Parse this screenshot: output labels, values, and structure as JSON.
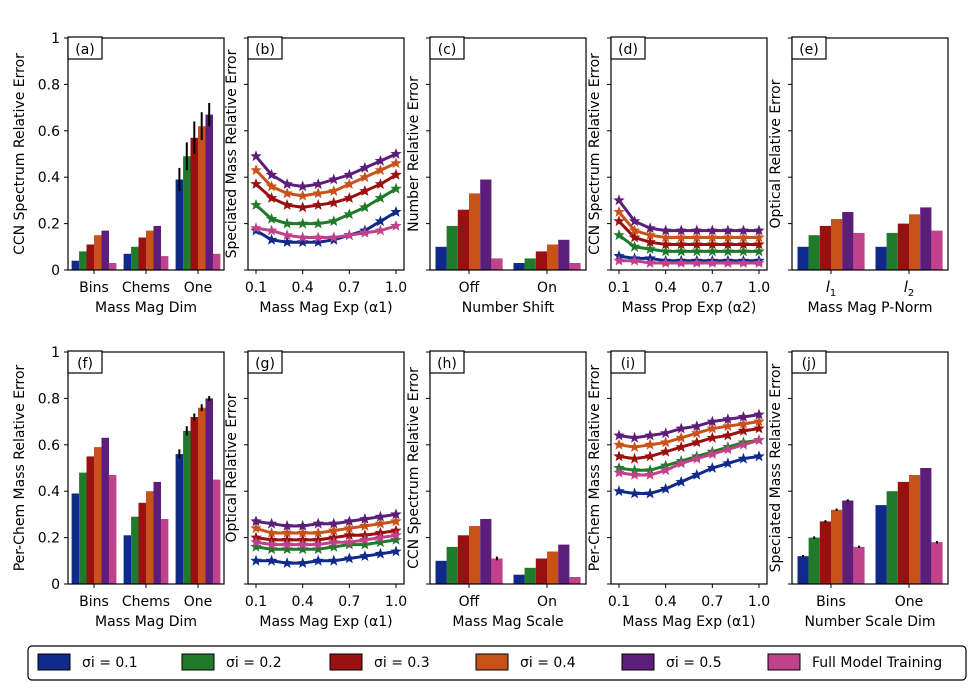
{
  "figure": {
    "legend": {
      "entries": [
        "σi = 0.1",
        "σi = 0.2",
        "σi = 0.3",
        "σi = 0.4",
        "σi = 0.5",
        "Full Model Training"
      ],
      "colors": [
        "#102a8c",
        "#1f7a2a",
        "#9a0f0f",
        "#c8521a",
        "#5b1e7a",
        "#c0428a"
      ]
    },
    "y_ticks": [
      "0",
      "0.2",
      "0.4",
      "0.6",
      "0.8",
      "1"
    ],
    "x_ticks_continuous": [
      "0.1",
      "0.4",
      "0.7",
      "1.0"
    ]
  },
  "chart_data": [
    {
      "id": "a",
      "panel_label": "(a)",
      "type": "bar",
      "ylabel": "CCN Spectrum Relative Error",
      "xlabel": "Mass Mag Dim",
      "categories": [
        "Bins",
        "Chems",
        "One"
      ],
      "ylim": [
        0,
        1
      ],
      "show_yticks": true,
      "series": [
        {
          "name": "σi = 0.1",
          "values": [
            0.04,
            0.07,
            0.39
          ],
          "errors": [
            0.0,
            0.0,
            0.05
          ]
        },
        {
          "name": "σi = 0.2",
          "values": [
            0.08,
            0.1,
            0.49
          ],
          "errors": [
            0.0,
            0.0,
            0.06
          ]
        },
        {
          "name": "σi = 0.3",
          "values": [
            0.11,
            0.14,
            0.57
          ],
          "errors": [
            0.0,
            0.0,
            0.07
          ]
        },
        {
          "name": "σi = 0.4",
          "values": [
            0.15,
            0.17,
            0.62
          ],
          "errors": [
            0.0,
            0.0,
            0.06
          ]
        },
        {
          "name": "σi = 0.5",
          "values": [
            0.17,
            0.19,
            0.67
          ],
          "errors": [
            0.0,
            0.0,
            0.05
          ]
        },
        {
          "name": "Full Model Training",
          "values": [
            0.03,
            0.06,
            0.07
          ],
          "errors": [
            0.0,
            0.0,
            0.0
          ]
        }
      ]
    },
    {
      "id": "b",
      "panel_label": "(b)",
      "type": "line",
      "ylabel": "Speciated Mass Relative Error",
      "xlabel": "Mass Mag Exp (α1)",
      "x": [
        0.1,
        0.2,
        0.3,
        0.4,
        0.5,
        0.6,
        0.7,
        0.8,
        0.9,
        1.0
      ],
      "ylim": [
        0,
        1
      ],
      "show_yticks": false,
      "series": [
        {
          "name": "σi = 0.1",
          "values": [
            0.17,
            0.13,
            0.12,
            0.12,
            0.12,
            0.13,
            0.15,
            0.17,
            0.21,
            0.25
          ]
        },
        {
          "name": "σi = 0.2",
          "values": [
            0.28,
            0.22,
            0.2,
            0.2,
            0.2,
            0.21,
            0.24,
            0.27,
            0.31,
            0.35
          ]
        },
        {
          "name": "σi = 0.3",
          "values": [
            0.37,
            0.31,
            0.28,
            0.27,
            0.28,
            0.29,
            0.31,
            0.34,
            0.37,
            0.41
          ]
        },
        {
          "name": "σi = 0.4",
          "values": [
            0.43,
            0.36,
            0.33,
            0.32,
            0.33,
            0.34,
            0.37,
            0.4,
            0.43,
            0.46
          ]
        },
        {
          "name": "σi = 0.5",
          "values": [
            0.49,
            0.41,
            0.37,
            0.36,
            0.37,
            0.39,
            0.41,
            0.44,
            0.47,
            0.5
          ]
        },
        {
          "name": "Full Model Training",
          "values": [
            0.18,
            0.17,
            0.15,
            0.14,
            0.14,
            0.14,
            0.15,
            0.16,
            0.17,
            0.19
          ]
        }
      ]
    },
    {
      "id": "c",
      "panel_label": "(c)",
      "type": "bar",
      "ylabel": "Number Relative Error",
      "xlabel": "Number Shift",
      "categories": [
        "Off",
        "On"
      ],
      "ylim": [
        0,
        1
      ],
      "show_yticks": false,
      "series": [
        {
          "name": "σi = 0.1",
          "values": [
            0.1,
            0.03
          ]
        },
        {
          "name": "σi = 0.2",
          "values": [
            0.19,
            0.05
          ]
        },
        {
          "name": "σi = 0.3",
          "values": [
            0.26,
            0.08
          ]
        },
        {
          "name": "σi = 0.4",
          "values": [
            0.33,
            0.11
          ]
        },
        {
          "name": "σi = 0.5",
          "values": [
            0.39,
            0.13
          ]
        },
        {
          "name": "Full Model Training",
          "values": [
            0.05,
            0.03
          ]
        }
      ]
    },
    {
      "id": "d",
      "panel_label": "(d)",
      "type": "line",
      "ylabel": "CCN Spectrum Relative Error",
      "xlabel": "Mass Prop Exp (α2)",
      "x": [
        0.1,
        0.2,
        0.3,
        0.4,
        0.5,
        0.6,
        0.7,
        0.8,
        0.9,
        1.0
      ],
      "ylim": [
        0,
        1
      ],
      "show_yticks": false,
      "series": [
        {
          "name": "σi = 0.1",
          "values": [
            0.06,
            0.05,
            0.05,
            0.04,
            0.04,
            0.04,
            0.04,
            0.04,
            0.04,
            0.04
          ]
        },
        {
          "name": "σi = 0.2",
          "values": [
            0.15,
            0.1,
            0.09,
            0.08,
            0.08,
            0.08,
            0.08,
            0.08,
            0.08,
            0.08
          ]
        },
        {
          "name": "σi = 0.3",
          "values": [
            0.21,
            0.14,
            0.12,
            0.11,
            0.11,
            0.11,
            0.11,
            0.11,
            0.11,
            0.11
          ]
        },
        {
          "name": "σi = 0.4",
          "values": [
            0.25,
            0.17,
            0.15,
            0.14,
            0.14,
            0.14,
            0.14,
            0.14,
            0.14,
            0.14
          ]
        },
        {
          "name": "σi = 0.5",
          "values": [
            0.3,
            0.21,
            0.18,
            0.17,
            0.17,
            0.17,
            0.17,
            0.17,
            0.17,
            0.17
          ]
        },
        {
          "name": "Full Model Training",
          "values": [
            0.04,
            0.04,
            0.03,
            0.03,
            0.03,
            0.03,
            0.03,
            0.03,
            0.03,
            0.03
          ]
        }
      ]
    },
    {
      "id": "e",
      "panel_label": "(e)",
      "type": "bar",
      "ylabel": "Optical Relative Error",
      "xlabel": "Mass Mag P-Norm",
      "categories": [
        "l1",
        "l2"
      ],
      "ylim": [
        0,
        1
      ],
      "show_yticks": false,
      "series": [
        {
          "name": "σi = 0.1",
          "values": [
            0.1,
            0.1
          ]
        },
        {
          "name": "σi = 0.2",
          "values": [
            0.15,
            0.16
          ]
        },
        {
          "name": "σi = 0.3",
          "values": [
            0.19,
            0.2
          ]
        },
        {
          "name": "σi = 0.4",
          "values": [
            0.22,
            0.24
          ]
        },
        {
          "name": "σi = 0.5",
          "values": [
            0.25,
            0.27
          ]
        },
        {
          "name": "Full Model Training",
          "values": [
            0.16,
            0.17
          ]
        }
      ]
    },
    {
      "id": "f",
      "panel_label": "(f)",
      "type": "bar",
      "ylabel": "Per-Chem Mass Relative Error",
      "xlabel": "Mass Mag Dim",
      "categories": [
        "Bins",
        "Chems",
        "One"
      ],
      "ylim": [
        0,
        1
      ],
      "show_yticks": true,
      "series": [
        {
          "name": "σi = 0.1",
          "values": [
            0.39,
            0.21,
            0.56
          ],
          "errors": [
            0.0,
            0.0,
            0.02
          ]
        },
        {
          "name": "σi = 0.2",
          "values": [
            0.48,
            0.29,
            0.66
          ],
          "errors": [
            0.0,
            0.0,
            0.02
          ]
        },
        {
          "name": "σi = 0.3",
          "values": [
            0.55,
            0.35,
            0.72
          ],
          "errors": [
            0.0,
            0.0,
            0.015
          ]
        },
        {
          "name": "σi = 0.4",
          "values": [
            0.59,
            0.4,
            0.76
          ],
          "errors": [
            0.0,
            0.0,
            0.015
          ]
        },
        {
          "name": "σi = 0.5",
          "values": [
            0.63,
            0.44,
            0.8
          ],
          "errors": [
            0.0,
            0.0,
            0.01
          ]
        },
        {
          "name": "Full Model Training",
          "values": [
            0.47,
            0.28,
            0.45
          ],
          "errors": [
            0.0,
            0.0,
            0.0
          ]
        }
      ]
    },
    {
      "id": "g",
      "panel_label": "(g)",
      "type": "line",
      "ylabel": "Optical Relative Error",
      "xlabel": "Mass Mag Exp (α1)",
      "x": [
        0.1,
        0.2,
        0.3,
        0.4,
        0.5,
        0.6,
        0.7,
        0.8,
        0.9,
        1.0
      ],
      "ylim": [
        0,
        1
      ],
      "show_yticks": false,
      "series": [
        {
          "name": "σi = 0.1",
          "values": [
            0.1,
            0.1,
            0.09,
            0.09,
            0.1,
            0.1,
            0.11,
            0.12,
            0.13,
            0.14
          ]
        },
        {
          "name": "σi = 0.2",
          "values": [
            0.16,
            0.15,
            0.15,
            0.15,
            0.15,
            0.16,
            0.17,
            0.17,
            0.18,
            0.19
          ]
        },
        {
          "name": "σi = 0.3",
          "values": [
            0.2,
            0.19,
            0.19,
            0.19,
            0.19,
            0.2,
            0.21,
            0.21,
            0.22,
            0.23
          ]
        },
        {
          "name": "σi = 0.4",
          "values": [
            0.24,
            0.22,
            0.22,
            0.22,
            0.22,
            0.23,
            0.24,
            0.25,
            0.26,
            0.27
          ]
        },
        {
          "name": "σi = 0.5",
          "values": [
            0.27,
            0.26,
            0.25,
            0.25,
            0.26,
            0.26,
            0.27,
            0.28,
            0.29,
            0.3
          ]
        },
        {
          "name": "Full Model Training",
          "values": [
            0.18,
            0.17,
            0.17,
            0.17,
            0.17,
            0.18,
            0.18,
            0.19,
            0.2,
            0.21
          ]
        }
      ]
    },
    {
      "id": "h",
      "panel_label": "(h)",
      "type": "bar",
      "ylabel": "CCN Spectrum Relative Error",
      "xlabel": "Mass Mag Scale",
      "categories": [
        "Off",
        "On"
      ],
      "ylim": [
        0,
        1
      ],
      "show_yticks": false,
      "series": [
        {
          "name": "σi = 0.1",
          "values": [
            0.1,
            0.04
          ],
          "errors": [
            0.0,
            0.0
          ]
        },
        {
          "name": "σi = 0.2",
          "values": [
            0.16,
            0.07
          ],
          "errors": [
            0.0,
            0.0
          ]
        },
        {
          "name": "σi = 0.3",
          "values": [
            0.21,
            0.11
          ],
          "errors": [
            0.0,
            0.0
          ]
        },
        {
          "name": "σi = 0.4",
          "values": [
            0.25,
            0.14
          ],
          "errors": [
            0.0,
            0.0
          ]
        },
        {
          "name": "σi = 0.5",
          "values": [
            0.28,
            0.17
          ],
          "errors": [
            0.0,
            0.0
          ]
        },
        {
          "name": "Full Model Training",
          "values": [
            0.11,
            0.03
          ],
          "errors": [
            0.008,
            0.0
          ]
        }
      ]
    },
    {
      "id": "i",
      "panel_label": "(i)",
      "type": "line",
      "ylabel": "Per-Chem Mass Relative Error",
      "xlabel": "Mass Mag Exp (α1)",
      "x": [
        0.1,
        0.2,
        0.3,
        0.4,
        0.5,
        0.6,
        0.7,
        0.8,
        0.9,
        1.0
      ],
      "ylim": [
        0,
        1
      ],
      "show_yticks": false,
      "series": [
        {
          "name": "σi = 0.1",
          "values": [
            0.4,
            0.39,
            0.39,
            0.41,
            0.44,
            0.47,
            0.5,
            0.52,
            0.54,
            0.55
          ]
        },
        {
          "name": "σi = 0.2",
          "values": [
            0.5,
            0.49,
            0.49,
            0.51,
            0.53,
            0.55,
            0.57,
            0.59,
            0.61,
            0.62
          ]
        },
        {
          "name": "σi = 0.3",
          "values": [
            0.55,
            0.54,
            0.55,
            0.57,
            0.59,
            0.61,
            0.63,
            0.64,
            0.66,
            0.67
          ]
        },
        {
          "name": "σi = 0.4",
          "values": [
            0.6,
            0.59,
            0.6,
            0.61,
            0.63,
            0.65,
            0.67,
            0.68,
            0.69,
            0.7
          ]
        },
        {
          "name": "σi = 0.5",
          "values": [
            0.64,
            0.63,
            0.64,
            0.65,
            0.67,
            0.68,
            0.7,
            0.71,
            0.72,
            0.73
          ]
        },
        {
          "name": "Full Model Training",
          "values": [
            0.48,
            0.47,
            0.47,
            0.49,
            0.52,
            0.54,
            0.56,
            0.58,
            0.6,
            0.62
          ]
        }
      ]
    },
    {
      "id": "j",
      "panel_label": "(j)",
      "type": "bar",
      "ylabel": "Speciated Mass Relative Error",
      "xlabel": "Number Scale Dim",
      "categories": [
        "Bins",
        "One"
      ],
      "ylim": [
        0,
        1
      ],
      "show_yticks": false,
      "series": [
        {
          "name": "σi = 0.1",
          "values": [
            0.12,
            0.34
          ],
          "errors": [
            0.005,
            0.0
          ]
        },
        {
          "name": "σi = 0.2",
          "values": [
            0.2,
            0.4
          ],
          "errors": [
            0.005,
            0.0
          ]
        },
        {
          "name": "σi = 0.3",
          "values": [
            0.27,
            0.44
          ],
          "errors": [
            0.005,
            0.0
          ]
        },
        {
          "name": "σi = 0.4",
          "values": [
            0.32,
            0.47
          ],
          "errors": [
            0.005,
            0.0
          ]
        },
        {
          "name": "σi = 0.5",
          "values": [
            0.36,
            0.5
          ],
          "errors": [
            0.005,
            0.0
          ]
        },
        {
          "name": "Full Model Training",
          "values": [
            0.16,
            0.18
          ],
          "errors": [
            0.005,
            0.005
          ]
        }
      ]
    }
  ]
}
